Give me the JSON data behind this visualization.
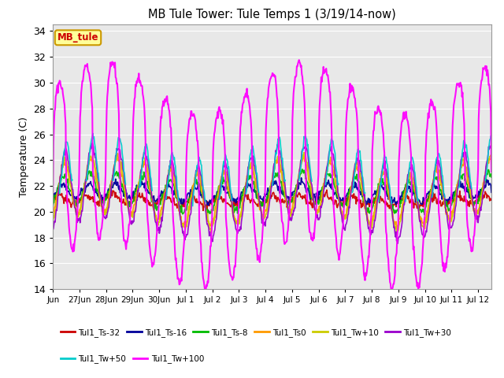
{
  "title": "MB Tule Tower: Tule Temps 1 (3/19/14-now)",
  "ylabel": "Temperature (C)",
  "ylim": [
    14,
    34.5
  ],
  "yticks": [
    14,
    16,
    18,
    20,
    22,
    24,
    26,
    28,
    30,
    32,
    34
  ],
  "background_color": "#ffffff",
  "plot_bg_color": "#e8e8e8",
  "legend_box_color": "#ffff99",
  "legend_box_edge": "#cc9900",
  "series": [
    {
      "label": "Tul1_Ts-32",
      "color": "#cc0000",
      "lw": 1.2,
      "base": 20.9,
      "amp": 0.35,
      "phase": 0.0
    },
    {
      "label": "Tul1_Ts-16",
      "color": "#000099",
      "lw": 1.2,
      "base": 21.5,
      "amp": 0.6,
      "phase": 0.1
    },
    {
      "label": "Tul1_Ts-8",
      "color": "#00bb00",
      "lw": 1.2,
      "base": 21.5,
      "amp": 1.2,
      "phase": 0.15
    },
    {
      "label": "Tul1_Ts0",
      "color": "#ff9900",
      "lw": 1.2,
      "base": 21.5,
      "amp": 2.0,
      "phase": 0.18
    },
    {
      "label": "Tul1_Tw+10",
      "color": "#cccc00",
      "lw": 1.2,
      "base": 21.5,
      "amp": 2.2,
      "phase": 0.2
    },
    {
      "label": "Tul1_Tw+30",
      "color": "#9900cc",
      "lw": 1.2,
      "base": 21.5,
      "amp": 2.8,
      "phase": 0.22
    },
    {
      "label": "Tul1_Tw+50",
      "color": "#00cccc",
      "lw": 1.2,
      "base": 21.5,
      "amp": 3.5,
      "phase": 0.25
    },
    {
      "label": "Tul1_Tw+100",
      "color": "#ff00ff",
      "lw": 1.5,
      "base": 21.5,
      "amp": 8.0,
      "phase": 0.0
    }
  ],
  "xtick_labels": [
    "Jun",
    "27Jun",
    "28Jun",
    "29Jun",
    "30Jun",
    "Jul 1",
    "Jul 2",
    "Jul 3",
    "Jul 4",
    "Jul 5",
    "Jul 6",
    "Jul 7",
    "Jul 8",
    "Jul 9",
    "Jul 10",
    "Jul 11",
    "Jul 12"
  ],
  "n_days": 16.5
}
